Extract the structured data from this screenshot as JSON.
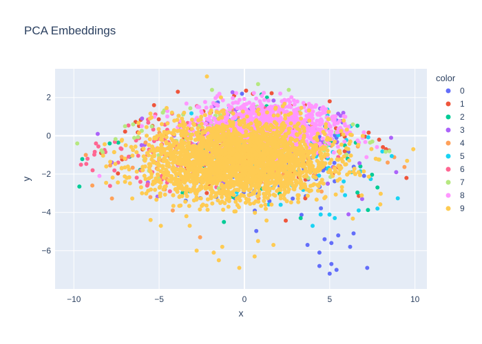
{
  "chart_data": {
    "type": "scatter",
    "title": "PCA Embeddings",
    "xlabel": "x",
    "ylabel": "y",
    "xlim": [
      -11.1,
      10.7
    ],
    "ylim": [
      -8.0,
      3.5
    ],
    "x_ticks": [
      -10,
      -5,
      0,
      5,
      10
    ],
    "y_ticks": [
      2,
      0,
      -2,
      -4,
      -6
    ],
    "x_tick_labels": [
      "−10",
      "−5",
      "0",
      "5",
      "10"
    ],
    "y_tick_labels": [
      "2",
      "0",
      "−2",
      "−4",
      "−6"
    ],
    "grid": true,
    "legend": {
      "title": "color",
      "placement": "right"
    },
    "series": [
      {
        "name": "0",
        "color": "#636efa",
        "center": [
          1.5,
          -1.3
        ],
        "spread": [
          2.6,
          1.4
        ],
        "count": 120,
        "points": [
          [
            4.4,
            -6.8
          ],
          [
            5.0,
            -7.2
          ],
          [
            5.4,
            -7.0
          ],
          [
            5.1,
            -6.7
          ],
          [
            7.2,
            -6.9
          ],
          [
            6.2,
            -5.8
          ],
          [
            5.1,
            -5.6
          ],
          [
            4.4,
            -6.1
          ],
          [
            4.7,
            -5.4
          ],
          [
            3.7,
            -5.7
          ],
          [
            6.4,
            -5.1
          ],
          [
            5.5,
            -5.2
          ]
        ]
      },
      {
        "name": "1",
        "color": "#ef553b",
        "center": [
          0.8,
          -0.6
        ],
        "spread": [
          3.4,
          1.1
        ],
        "count": 110,
        "points": [
          [
            9.5,
            -2.2
          ],
          [
            8.3,
            -0.7
          ],
          [
            7.9,
            -0.2
          ],
          [
            -8.4,
            -0.9
          ],
          [
            -5.3,
            1.6
          ],
          [
            5.0,
            1.8
          ],
          [
            -3.9,
            2.3
          ],
          [
            -0.6,
            2.1
          ],
          [
            0.5,
            2.2
          ]
        ]
      },
      {
        "name": "2",
        "color": "#00cc96",
        "center": [
          0.5,
          -0.8
        ],
        "spread": [
          3.0,
          1.2
        ],
        "count": 90,
        "points": [
          [
            -1.2,
            -4.5
          ],
          [
            7.8,
            -2.7
          ],
          [
            6.8,
            -1.6
          ],
          [
            -7.9,
            -0.4
          ],
          [
            3.3,
            -4.3
          ]
        ]
      },
      {
        "name": "3",
        "color": "#ab63fa",
        "center": [
          0.7,
          -0.4
        ],
        "spread": [
          3.2,
          1.1
        ],
        "count": 120,
        "points": [
          [
            8.9,
            -1.9
          ],
          [
            8.6,
            -0.1
          ],
          [
            6.9,
            -3.3
          ],
          [
            6.1,
            -4.1
          ],
          [
            -8.6,
            0.1
          ],
          [
            -6.0,
            0.9
          ],
          [
            5.8,
            1.2
          ]
        ]
      },
      {
        "name": "4",
        "color": "#ffa15a",
        "center": [
          -0.2,
          -0.9
        ],
        "spread": [
          3.6,
          1.3
        ],
        "count": 90,
        "points": [
          [
            -9.3,
            -1.0
          ],
          [
            8.4,
            -1.4
          ],
          [
            -2.6,
            -5.3
          ],
          [
            -4.2,
            -3.9
          ],
          [
            -7.2,
            -1.1
          ]
        ]
      },
      {
        "name": "5",
        "color": "#19d3f3",
        "center": [
          2.0,
          -1.4
        ],
        "spread": [
          2.6,
          1.3
        ],
        "count": 90,
        "points": [
          [
            4.0,
            -4.7
          ],
          [
            5.3,
            -4.3
          ],
          [
            6.7,
            -3.9
          ],
          [
            7.8,
            -3.8
          ],
          [
            5.9,
            -3.1
          ]
        ]
      },
      {
        "name": "6",
        "color": "#ff6692",
        "center": [
          -2.8,
          -0.8
        ],
        "spread": [
          3.0,
          1.1
        ],
        "count": 140,
        "points": [
          [
            -7.4,
            -1.4
          ],
          [
            -8.9,
            -1.8
          ],
          [
            -9.2,
            -1.2
          ],
          [
            -6.1,
            -2.4
          ],
          [
            -5.7,
            -2.6
          ],
          [
            -4.9,
            -2.3
          ],
          [
            -8.7,
            -0.4
          ]
        ]
      },
      {
        "name": "7",
        "color": "#b6e880",
        "center": [
          -0.3,
          -0.3
        ],
        "spread": [
          3.6,
          1.0
        ],
        "count": 120,
        "points": [
          [
            -9.8,
            -0.4
          ],
          [
            -7.0,
            0.5
          ],
          [
            -1.9,
            2.4
          ],
          [
            0.8,
            2.7
          ],
          [
            2.6,
            2.4
          ],
          [
            8.5,
            -0.8
          ],
          [
            7.5,
            -0.3
          ]
        ]
      },
      {
        "name": "8",
        "color": "#ff97ff",
        "center": [
          1.5,
          0.4
        ],
        "spread": [
          2.0,
          0.7
        ],
        "count": 1100,
        "points": [
          [
            -8.5,
            -2.1
          ],
          [
            4.2,
            1.6
          ],
          [
            4.3,
            1.1
          ],
          [
            3.5,
            1.5
          ],
          [
            2.2,
            1.8
          ],
          [
            3.0,
            1.2
          ],
          [
            4.0,
            0.9
          ]
        ]
      },
      {
        "name": "9",
        "color": "#fecb52",
        "center": [
          -0.3,
          -1.3
        ],
        "spread": [
          2.6,
          1.0
        ],
        "count": 2800,
        "points": [
          [
            -2.2,
            3.1
          ],
          [
            -1.5,
            -6.5
          ],
          [
            -0.3,
            -6.9
          ],
          [
            0.6,
            -6.3
          ],
          [
            -2.8,
            -6.0
          ],
          [
            -5.5,
            -4.4
          ],
          [
            -3.4,
            -4.2
          ],
          [
            -4.9,
            -4.7
          ],
          [
            -1.3,
            -5.8
          ],
          [
            0.8,
            -5.5
          ],
          [
            1.7,
            -5.7
          ],
          [
            -6.0,
            -3.0
          ],
          [
            -7.0,
            -2.4
          ],
          [
            -8.1,
            -1.6
          ],
          [
            6.7,
            -1.9
          ],
          [
            7.7,
            -1.2
          ],
          [
            9.9,
            -0.7
          ]
        ]
      }
    ]
  }
}
